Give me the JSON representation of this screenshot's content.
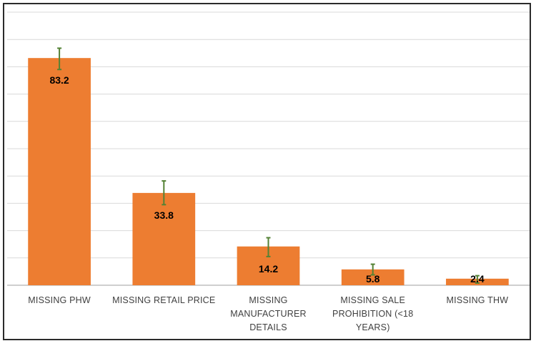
{
  "chart_data": {
    "type": "bar",
    "title": "",
    "xlabel": "",
    "ylabel": "",
    "ylim": [
      0,
      100
    ],
    "grid": true,
    "categories": [
      [
        "MISSING PHW"
      ],
      [
        "MISSING RETAIL PRICE"
      ],
      [
        "MISSING",
        "MANUFACTURER",
        "DETAILS"
      ],
      [
        "MISSING SALE",
        "PROHIBITION (<18",
        "YEARS)"
      ],
      [
        "MISSING THW"
      ]
    ],
    "values": [
      83.2,
      33.8,
      14.2,
      5.8,
      2.4
    ],
    "value_labels": [
      "83.2",
      "33.8",
      "14.2",
      "5.8",
      "2.4"
    ],
    "error_low": [
      79.0,
      29.5,
      10.5,
      3.8,
      0.8
    ],
    "error_high": [
      86.8,
      38.2,
      17.4,
      7.7,
      3.5
    ],
    "colors": {
      "bar": "#ED7D31",
      "error_bar": "#548235",
      "grid": "#d9d9d9",
      "axis": "#bfbfbf"
    }
  }
}
